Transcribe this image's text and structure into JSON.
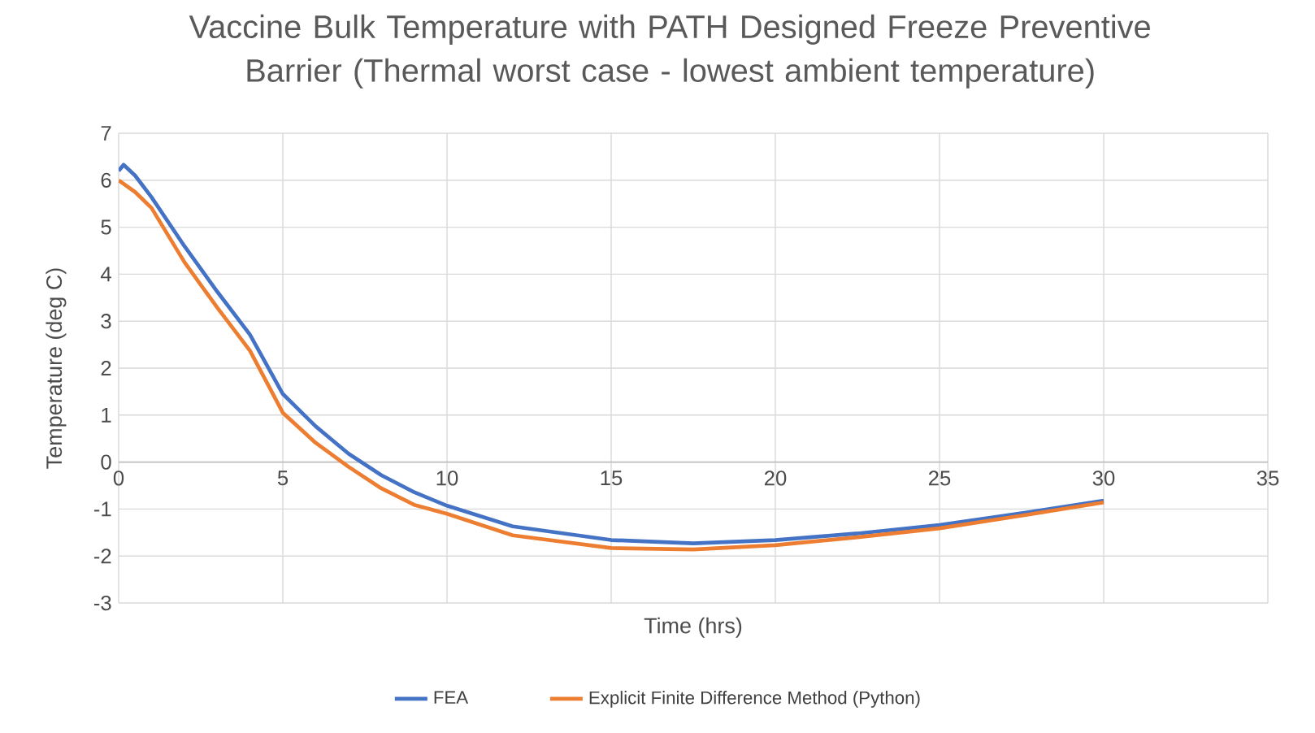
{
  "chart_data": {
    "type": "line",
    "title": "Vaccine Bulk Temperature with PATH Designed Freeze Preventive Barrier (Thermal worst case - lowest ambient temperature)",
    "xlabel": "Time (hrs)",
    "ylabel": "Temperature (deg C)",
    "xlim": [
      0,
      35
    ],
    "xticks": [
      0,
      5,
      10,
      15,
      20,
      25,
      30,
      35
    ],
    "ylim": [
      -3,
      7
    ],
    "yticks": [
      -3,
      -2,
      -1,
      0,
      1,
      2,
      3,
      4,
      5,
      6,
      7
    ],
    "grid": true,
    "legend": "bottom",
    "marker": "none",
    "line_style": "solid",
    "series": [
      {
        "name": "FEA",
        "color": "#4472c4",
        "x": [
          0,
          0.15,
          0.5,
          1,
          2,
          3,
          4,
          5,
          6,
          7,
          8,
          9,
          10,
          12,
          15,
          17.5,
          20,
          22.5,
          25,
          27.5,
          30
        ],
        "values": [
          6.2,
          6.33,
          6.1,
          5.64,
          4.6,
          3.63,
          2.71,
          1.45,
          0.76,
          0.18,
          -0.28,
          -0.64,
          -0.93,
          -1.37,
          -1.66,
          -1.73,
          -1.66,
          -1.52,
          -1.34,
          -1.09,
          -0.82
        ]
      },
      {
        "name": "Explicit Finite Difference Method (Python)",
        "color": "#ed7d31",
        "x": [
          0,
          0.5,
          1,
          2,
          3,
          4,
          5,
          6,
          7,
          8,
          9,
          10,
          12,
          15,
          17.5,
          20,
          22.5,
          25,
          27.5,
          30
        ],
        "values": [
          6.0,
          5.75,
          5.41,
          4.26,
          3.29,
          2.37,
          1.05,
          0.41,
          -0.1,
          -0.56,
          -0.91,
          -1.1,
          -1.56,
          -1.83,
          -1.86,
          -1.77,
          -1.6,
          -1.41,
          -1.14,
          -0.86
        ]
      }
    ]
  }
}
